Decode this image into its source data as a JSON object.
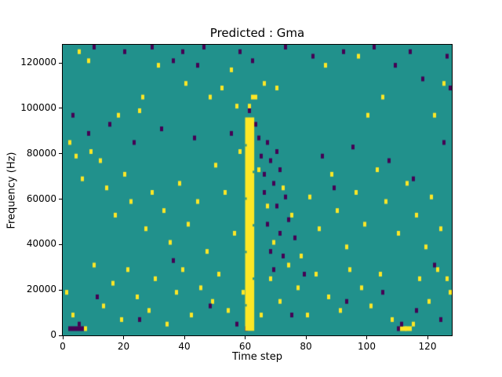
{
  "chart_data": {
    "type": "heatmap",
    "title": "Predicted : Gma",
    "xlabel": "Time step",
    "ylabel": "Frequency (Hz)",
    "xlim": [
      0,
      128
    ],
    "ylim": [
      0,
      128000
    ],
    "x_ticks": [
      0,
      20,
      40,
      60,
      80,
      100,
      120
    ],
    "y_ticks": [
      0,
      20000,
      40000,
      60000,
      80000,
      100000,
      120000
    ],
    "grid": {
      "n_time_steps": 128,
      "freq_bin_hz": 2000,
      "n_freq_bins": 64
    },
    "legend": "none",
    "colors": {
      "background": "#21918c",
      "high": "#fde725",
      "low": "#440154",
      "axes": "#000000"
    },
    "band": {
      "comment": "dense yellow vertical band",
      "x": [
        60,
        63
      ],
      "y": [
        2000,
        96000
      ]
    },
    "cells_high": [
      [
        5,
        124000
      ],
      [
        8,
        120000
      ],
      [
        26,
        104000
      ],
      [
        25,
        98000
      ],
      [
        31,
        118000
      ],
      [
        18,
        96000
      ],
      [
        40,
        110000
      ],
      [
        48,
        104000
      ],
      [
        52,
        108000
      ],
      [
        55,
        116000
      ],
      [
        57,
        100000
      ],
      [
        61,
        100000
      ],
      [
        62,
        104000
      ],
      [
        63,
        104000
      ],
      [
        66,
        110000
      ],
      [
        70,
        108000
      ],
      [
        86,
        118000
      ],
      [
        97,
        122000
      ],
      [
        100,
        96000
      ],
      [
        105,
        104000
      ],
      [
        122,
        96000
      ],
      [
        125,
        110000
      ],
      [
        2,
        84000
      ],
      [
        4,
        78000
      ],
      [
        6,
        68000
      ],
      [
        9,
        80000
      ],
      [
        12,
        76000
      ],
      [
        14,
        64000
      ],
      [
        17,
        52000
      ],
      [
        20,
        70000
      ],
      [
        22,
        58000
      ],
      [
        27,
        46000
      ],
      [
        29,
        62000
      ],
      [
        33,
        54000
      ],
      [
        35,
        40000
      ],
      [
        38,
        66000
      ],
      [
        41,
        48000
      ],
      [
        44,
        58000
      ],
      [
        47,
        36000
      ],
      [
        50,
        74000
      ],
      [
        53,
        62000
      ],
      [
        56,
        44000
      ],
      [
        58,
        80000
      ],
      [
        64,
        72000
      ],
      [
        67,
        56000
      ],
      [
        69,
        40000
      ],
      [
        72,
        64000
      ],
      [
        75,
        52000
      ],
      [
        78,
        34000
      ],
      [
        81,
        60000
      ],
      [
        84,
        46000
      ],
      [
        88,
        70000
      ],
      [
        90,
        54000
      ],
      [
        93,
        38000
      ],
      [
        96,
        62000
      ],
      [
        99,
        48000
      ],
      [
        103,
        72000
      ],
      [
        106,
        58000
      ],
      [
        110,
        44000
      ],
      [
        113,
        66000
      ],
      [
        116,
        52000
      ],
      [
        119,
        38000
      ],
      [
        121,
        60000
      ],
      [
        124,
        46000
      ],
      [
        126,
        24000
      ],
      [
        1,
        18000
      ],
      [
        3,
        8000
      ],
      [
        7,
        2000
      ],
      [
        10,
        30000
      ],
      [
        13,
        12000
      ],
      [
        16,
        22000
      ],
      [
        19,
        6000
      ],
      [
        21,
        28000
      ],
      [
        24,
        16000
      ],
      [
        28,
        10000
      ],
      [
        30,
        24000
      ],
      [
        34,
        4000
      ],
      [
        37,
        18000
      ],
      [
        39,
        28000
      ],
      [
        42,
        8000
      ],
      [
        45,
        20000
      ],
      [
        49,
        14000
      ],
      [
        51,
        26000
      ],
      [
        54,
        10000
      ],
      [
        59,
        18000
      ],
      [
        65,
        8000
      ],
      [
        68,
        24000
      ],
      [
        71,
        14000
      ],
      [
        74,
        30000
      ],
      [
        77,
        20000
      ],
      [
        80,
        8000
      ],
      [
        83,
        26000
      ],
      [
        87,
        16000
      ],
      [
        91,
        10000
      ],
      [
        94,
        28000
      ],
      [
        98,
        20000
      ],
      [
        101,
        12000
      ],
      [
        104,
        26000
      ],
      [
        108,
        6000
      ],
      [
        111,
        2000
      ],
      [
        112,
        2000
      ],
      [
        113,
        2000
      ],
      [
        114,
        2000
      ],
      [
        115,
        4000
      ],
      [
        117,
        24000
      ],
      [
        120,
        14000
      ],
      [
        123,
        28000
      ],
      [
        127,
        18000
      ]
    ],
    "cells_low": [
      [
        10,
        126000
      ],
      [
        20,
        124000
      ],
      [
        29,
        126000
      ],
      [
        36,
        120000
      ],
      [
        39,
        124000
      ],
      [
        44,
        118000
      ],
      [
        46,
        126000
      ],
      [
        58,
        124000
      ],
      [
        62,
        120000
      ],
      [
        73,
        126000
      ],
      [
        82,
        122000
      ],
      [
        92,
        124000
      ],
      [
        102,
        126000
      ],
      [
        109,
        118000
      ],
      [
        114,
        124000
      ],
      [
        118,
        112000
      ],
      [
        126,
        122000
      ],
      [
        127,
        108000
      ],
      [
        3,
        96000
      ],
      [
        8,
        88000
      ],
      [
        15,
        92000
      ],
      [
        23,
        84000
      ],
      [
        32,
        90000
      ],
      [
        43,
        86000
      ],
      [
        55,
        88000
      ],
      [
        61,
        98000
      ],
      [
        63,
        92000
      ],
      [
        64,
        86000
      ],
      [
        65,
        78000
      ],
      [
        66,
        70000
      ],
      [
        66,
        62000
      ],
      [
        67,
        84000
      ],
      [
        67,
        48000
      ],
      [
        68,
        76000
      ],
      [
        68,
        36000
      ],
      [
        69,
        66000
      ],
      [
        69,
        28000
      ],
      [
        70,
        56000
      ],
      [
        70,
        80000
      ],
      [
        71,
        44000
      ],
      [
        71,
        72000
      ],
      [
        72,
        34000
      ],
      [
        73,
        60000
      ],
      [
        74,
        50000
      ],
      [
        76,
        42000
      ],
      [
        85,
        78000
      ],
      [
        89,
        64000
      ],
      [
        95,
        82000
      ],
      [
        107,
        76000
      ],
      [
        115,
        68000
      ],
      [
        125,
        84000
      ],
      [
        2,
        2000
      ],
      [
        3,
        2000
      ],
      [
        4,
        2000
      ],
      [
        5,
        2000
      ],
      [
        5,
        4000
      ],
      [
        6,
        2000
      ],
      [
        11,
        16000
      ],
      [
        25,
        6000
      ],
      [
        36,
        32000
      ],
      [
        48,
        12000
      ],
      [
        57,
        4000
      ],
      [
        60,
        2000
      ],
      [
        75,
        8000
      ],
      [
        79,
        26000
      ],
      [
        93,
        14000
      ],
      [
        105,
        18000
      ],
      [
        110,
        2000
      ],
      [
        111,
        4000
      ],
      [
        116,
        10000
      ],
      [
        122,
        30000
      ],
      [
        124,
        6000
      ]
    ]
  }
}
